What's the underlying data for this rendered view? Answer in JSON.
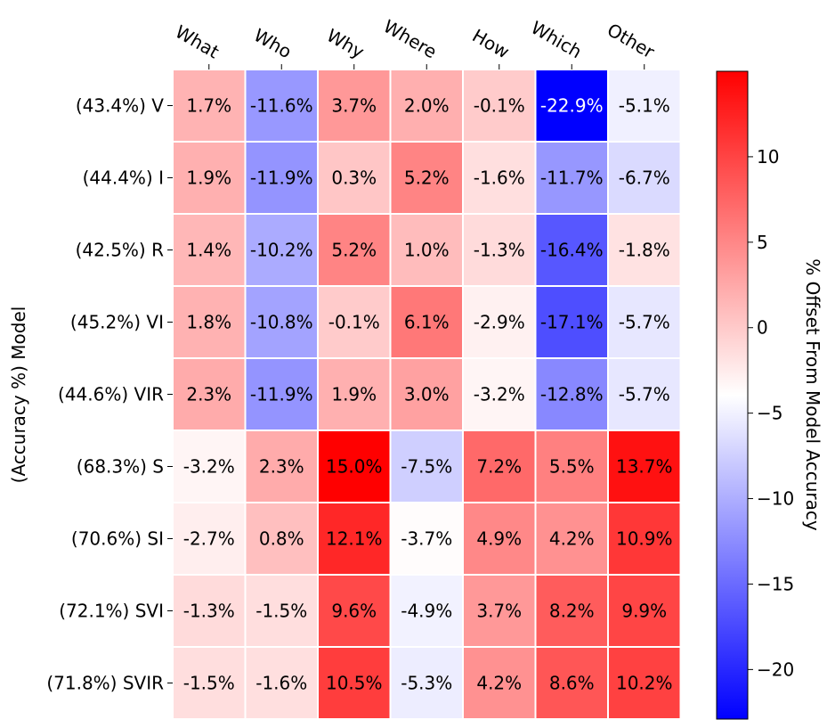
{
  "chart_data": {
    "type": "heatmap",
    "ylabel": "(Accuracy %) Model",
    "colorbar_label": "% Offset From Model Accuracy",
    "colorbar_range": [
      -22.9,
      15.0
    ],
    "colorbar_ticks": [
      "10",
      "5",
      "0",
      "−5",
      "−10",
      "−15",
      "−20"
    ],
    "colorbar_tick_values": [
      10,
      5,
      0,
      -5,
      -10,
      -15,
      -20
    ],
    "colormap": "bwr",
    "x_categories": [
      "What",
      "Who",
      "Why",
      "Where",
      "How",
      "Which",
      "Other"
    ],
    "y_categories": [
      "(43.4%) V",
      "(44.4%) I",
      "(42.5%) R",
      "(45.2%) VI",
      "(44.6%) VIR",
      "(68.3%) S",
      "(70.6%) SI",
      "(72.1%) SVI",
      "(71.8%) SVIR"
    ],
    "values": [
      [
        1.7,
        -11.6,
        3.7,
        2.0,
        -0.1,
        -22.9,
        -5.1
      ],
      [
        1.9,
        -11.9,
        0.3,
        5.2,
        -1.6,
        -11.7,
        -6.7
      ],
      [
        1.4,
        -10.2,
        5.2,
        1.0,
        -1.3,
        -16.4,
        -1.8
      ],
      [
        1.8,
        -10.8,
        -0.1,
        6.1,
        -2.9,
        -17.1,
        -5.7
      ],
      [
        2.3,
        -11.9,
        1.9,
        3.0,
        -3.2,
        -12.8,
        -5.7
      ],
      [
        -3.2,
        2.3,
        15.0,
        -7.5,
        7.2,
        5.5,
        13.7
      ],
      [
        -2.7,
        0.8,
        12.1,
        -3.7,
        4.9,
        4.2,
        10.9
      ],
      [
        -1.3,
        -1.5,
        9.6,
        -4.9,
        3.7,
        8.2,
        9.9
      ],
      [
        -1.5,
        -1.6,
        10.5,
        -5.3,
        4.2,
        8.6,
        10.2
      ]
    ],
    "cell_labels": [
      [
        "1.7%",
        "-11.6%",
        "3.7%",
        "2.0%",
        "-0.1%",
        "-22.9%",
        "-5.1%"
      ],
      [
        "1.9%",
        "-11.9%",
        "0.3%",
        "5.2%",
        "-1.6%",
        "-11.7%",
        "-6.7%"
      ],
      [
        "1.4%",
        "-10.2%",
        "5.2%",
        "1.0%",
        "-1.3%",
        "-16.4%",
        "-1.8%"
      ],
      [
        "1.8%",
        "-10.8%",
        "-0.1%",
        "6.1%",
        "-2.9%",
        "-17.1%",
        "-5.7%"
      ],
      [
        "2.3%",
        "-11.9%",
        "1.9%",
        "3.0%",
        "-3.2%",
        "-12.8%",
        "-5.7%"
      ],
      [
        "-3.2%",
        "2.3%",
        "15.0%",
        "-7.5%",
        "7.2%",
        "5.5%",
        "13.7%"
      ],
      [
        "-2.7%",
        "0.8%",
        "12.1%",
        "-3.7%",
        "4.9%",
        "4.2%",
        "10.9%"
      ],
      [
        "-1.3%",
        "-1.5%",
        "9.6%",
        "-4.9%",
        "3.7%",
        "8.2%",
        "9.9%"
      ],
      [
        "-1.5%",
        "-1.6%",
        "10.5%",
        "-5.3%",
        "4.2%",
        "8.6%",
        "10.2%"
      ]
    ],
    "grid": false,
    "xtick_position": "top",
    "colorbar_position": "right"
  }
}
